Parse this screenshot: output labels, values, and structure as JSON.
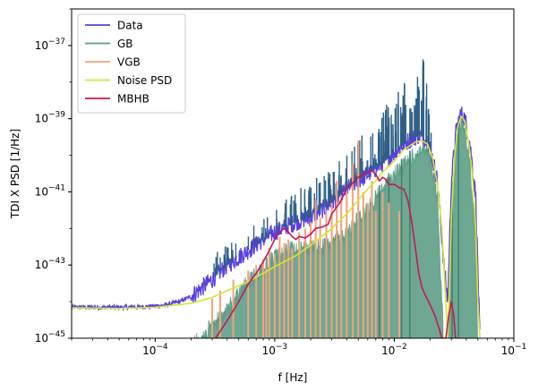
{
  "chart_data": {
    "type": "line",
    "title": "",
    "xlabel": "f [Hz]",
    "ylabel": "TDI X PSD [1/Hz]",
    "xscale": "log",
    "yscale": "log",
    "xlim": [
      2e-05,
      0.1
    ],
    "ylim": [
      1e-45,
      1e-36
    ],
    "x_major_ticks": [
      {
        "value": 0.0001,
        "base": "10",
        "exp": "−4"
      },
      {
        "value": 0.001,
        "base": "10",
        "exp": "−3"
      },
      {
        "value": 0.01,
        "base": "10",
        "exp": "−2"
      },
      {
        "value": 0.1,
        "base": "10",
        "exp": "−1"
      }
    ],
    "y_major_ticks": [
      {
        "value": 1e-45,
        "base": "10",
        "exp": "−45"
      },
      {
        "value": 1e-43,
        "base": "10",
        "exp": "−43"
      },
      {
        "value": 1e-41,
        "base": "10",
        "exp": "−41"
      },
      {
        "value": 1e-39,
        "base": "10",
        "exp": "−39"
      },
      {
        "value": 1e-37,
        "base": "10",
        "exp": "−37"
      }
    ],
    "legend_position": "top-left",
    "series": [
      {
        "name": "Data",
        "color": "#5a3ee0",
        "style": "noisy-band",
        "points": [
          [
            2e-05,
            7e-45
          ],
          [
            5e-05,
            7e-45
          ],
          [
            8e-05,
            7.2e-45
          ],
          [
            0.00012,
            8e-45
          ],
          [
            0.00016,
            1e-44
          ],
          [
            0.0002,
            1.4e-44
          ],
          [
            0.0003,
            4e-44
          ],
          [
            0.0004,
            1e-43
          ],
          [
            0.0006,
            2.5e-43
          ],
          [
            0.0008,
            5e-43
          ],
          [
            0.001,
            8e-43
          ],
          [
            0.0015,
            1.5e-42
          ],
          [
            0.002,
            2e-42
          ],
          [
            0.003,
            5e-42
          ],
          [
            0.004,
            1.2e-41
          ],
          [
            0.006,
            3e-41
          ],
          [
            0.008,
            6e-41
          ],
          [
            0.01,
            1.2e-40
          ],
          [
            0.013,
            2.5e-40
          ],
          [
            0.016,
            3.5e-40
          ],
          [
            0.018,
            3e-40
          ],
          [
            0.02,
            1.5e-40
          ],
          [
            0.023,
            2e-41
          ],
          [
            0.026,
            1e-43
          ],
          [
            0.028,
            1e-44
          ],
          [
            0.03,
            2e-41
          ],
          [
            0.033,
            5e-40
          ],
          [
            0.036,
            1.4e-39
          ],
          [
            0.039,
            1e-39
          ],
          [
            0.043,
            2e-40
          ],
          [
            0.048,
            8e-42
          ],
          [
            0.052,
            1e-45
          ]
        ],
        "upper_envelope": [
          [
            0.0003,
            2e-43
          ],
          [
            0.0006,
            1e-42
          ],
          [
            0.001,
            4e-42
          ],
          [
            0.002,
            2e-41
          ],
          [
            0.004,
            1e-40
          ],
          [
            0.006,
            6e-40
          ],
          [
            0.008,
            2e-39
          ],
          [
            0.01,
            5e-39
          ],
          [
            0.012,
            1e-38
          ],
          [
            0.014,
            1.5e-38
          ],
          [
            0.016,
            2.5e-38
          ],
          [
            0.018,
            6e-38
          ],
          [
            0.02,
            1e-39
          ],
          [
            0.022,
            3e-40
          ]
        ]
      },
      {
        "name": "GB",
        "color": "#5e9e86",
        "style": "filled-spikes",
        "points": [
          [
            0.00019,
            1e-45
          ],
          [
            0.00025,
            2e-45
          ],
          [
            0.0004,
            1e-44
          ],
          [
            0.0006,
            6e-44
          ],
          [
            0.0008,
            1.5e-43
          ],
          [
            0.001,
            3e-43
          ],
          [
            0.0015,
            5e-43
          ],
          [
            0.002,
            5e-43
          ],
          [
            0.003,
            6e-43
          ],
          [
            0.004,
            1.5e-42
          ],
          [
            0.006,
            6e-42
          ],
          [
            0.008,
            2e-41
          ],
          [
            0.01,
            5e-41
          ],
          [
            0.013,
            1.2e-40
          ],
          [
            0.016,
            2.2e-40
          ],
          [
            0.018,
            2.5e-40
          ],
          [
            0.02,
            1.2e-40
          ],
          [
            0.023,
            1e-41
          ],
          [
            0.026,
            1e-45
          ],
          [
            0.028,
            1e-45
          ],
          [
            0.03,
            1e-41
          ],
          [
            0.033,
            4e-40
          ],
          [
            0.036,
            1.2e-39
          ],
          [
            0.039,
            8e-40
          ],
          [
            0.043,
            1e-40
          ],
          [
            0.048,
            1e-42
          ],
          [
            0.05,
            1e-45
          ]
        ]
      },
      {
        "name": "VGB",
        "color": "#f4a27c",
        "style": "spikes",
        "spikes": [
          [
            0.0003,
            1.2e-44
          ],
          [
            0.00035,
            2e-44
          ],
          [
            0.00045,
            4e-44
          ],
          [
            0.0006,
            7e-44
          ],
          [
            0.0007,
            1e-43
          ],
          [
            0.0008,
            1.5e-43
          ],
          [
            0.00085,
            8e-44
          ],
          [
            0.0009,
            3e-43
          ],
          [
            0.001,
            2e-43
          ],
          [
            0.0011,
            6e-43
          ],
          [
            0.0012,
            4e-43
          ],
          [
            0.0013,
            5e-43
          ],
          [
            0.0014,
            3e-43
          ],
          [
            0.0016,
            8e-43
          ],
          [
            0.0018,
            1e-42
          ],
          [
            0.002,
            1.5e-42
          ],
          [
            0.0022,
            6e-42
          ],
          [
            0.0024,
            2e-42
          ],
          [
            0.0027,
            3e-42
          ],
          [
            0.003,
            5e-42
          ],
          [
            0.0033,
            2e-41
          ],
          [
            0.0036,
            8e-42
          ],
          [
            0.004,
            1.2e-41
          ],
          [
            0.0045,
            6e-41
          ],
          [
            0.005,
            2.5e-40
          ],
          [
            0.0055,
            1e-41
          ],
          [
            0.006,
            5e-42
          ],
          [
            0.0065,
            2e-41
          ],
          [
            0.007,
            3e-42
          ],
          [
            0.008,
            1e-41
          ],
          [
            0.009,
            5e-42
          ],
          [
            0.011,
            3e-42
          ]
        ]
      },
      {
        "name": "Noise PSD",
        "color": "#d6e634",
        "style": "line",
        "points": [
          [
            2e-05,
            6.8e-45
          ],
          [
            5e-05,
            6.5e-45
          ],
          [
            0.0001,
            7e-45
          ],
          [
            0.0002,
            9e-45
          ],
          [
            0.0003,
            1.3e-44
          ],
          [
            0.0004,
            2e-44
          ],
          [
            0.0006,
            3.5e-44
          ],
          [
            0.0008,
            6e-44
          ],
          [
            0.001,
            9e-44
          ],
          [
            0.0015,
            1.8e-43
          ],
          [
            0.002,
            3.5e-43
          ],
          [
            0.003,
            1e-42
          ],
          [
            0.004,
            2.5e-42
          ],
          [
            0.005,
            6e-42
          ],
          [
            0.006,
            1.2e-41
          ],
          [
            0.007,
            2e-41
          ],
          [
            0.008,
            3.5e-41
          ],
          [
            0.01,
            7e-41
          ],
          [
            0.012,
            1.4e-40
          ],
          [
            0.015,
            2.3e-40
          ],
          [
            0.017,
            2.5e-40
          ],
          [
            0.019,
            2e-40
          ],
          [
            0.021,
            8e-41
          ],
          [
            0.023,
            1.5e-41
          ],
          [
            0.025,
            1e-42
          ],
          [
            0.027,
            1e-44
          ],
          [
            0.028,
            1e-45
          ],
          [
            0.029,
            3e-44
          ],
          [
            0.03,
            2e-42
          ],
          [
            0.032,
            1e-40
          ],
          [
            0.034,
            6e-40
          ],
          [
            0.036,
            1.1e-39
          ],
          [
            0.037,
            1.1e-39
          ],
          [
            0.039,
            8e-40
          ],
          [
            0.042,
            2e-40
          ],
          [
            0.045,
            3e-41
          ],
          [
            0.048,
            1e-42
          ],
          [
            0.05,
            1e-44
          ],
          [
            0.052,
            1e-45
          ]
        ]
      },
      {
        "name": "MBHB",
        "color": "#c8165a",
        "style": "line",
        "points": [
          [
            0.00032,
            1e-45
          ],
          [
            0.0004,
            3e-45
          ],
          [
            0.0005,
            1e-44
          ],
          [
            0.0006,
            3e-44
          ],
          [
            0.0007,
            6e-44
          ],
          [
            0.0008,
            1.2e-43
          ],
          [
            0.0009,
            2.5e-43
          ],
          [
            0.001,
            5e-43
          ],
          [
            0.0011,
            8e-43
          ],
          [
            0.0012,
            1e-42
          ],
          [
            0.0013,
            8e-43
          ],
          [
            0.0014,
            6e-43
          ],
          [
            0.0015,
            5e-43
          ],
          [
            0.0016,
            6e-43
          ],
          [
            0.0018,
            5.5e-43
          ],
          [
            0.002,
            7e-43
          ],
          [
            0.0022,
            1e-42
          ],
          [
            0.0025,
            1.1e-42
          ],
          [
            0.0028,
            1.3e-42
          ],
          [
            0.003,
            2.5e-42
          ],
          [
            0.0035,
            5e-42
          ],
          [
            0.004,
            1.2e-41
          ],
          [
            0.005,
            2.5e-41
          ],
          [
            0.006,
            3.5e-41
          ],
          [
            0.0065,
            3.8e-41
          ],
          [
            0.007,
            3e-41
          ],
          [
            0.0075,
            2e-41
          ],
          [
            0.008,
            2.5e-41
          ],
          [
            0.0085,
            2.2e-41
          ],
          [
            0.009,
            1.6e-41
          ],
          [
            0.01,
            1.6e-41
          ],
          [
            0.011,
            1.3e-41
          ],
          [
            0.012,
            1.2e-41
          ],
          [
            0.013,
            6e-42
          ],
          [
            0.014,
            1.5e-42
          ],
          [
            0.015,
            3e-43
          ],
          [
            0.016,
            6e-44
          ],
          [
            0.017,
            2.5e-44
          ],
          [
            0.018,
            1.6e-44
          ],
          [
            0.02,
            8e-45
          ],
          [
            0.022,
            4e-45
          ],
          [
            0.024,
            1.6e-45
          ],
          [
            0.025,
            1e-45
          ],
          [
            0.027,
            1e-45
          ],
          [
            0.0285,
            4e-45
          ],
          [
            0.03,
            1e-44
          ],
          [
            0.0315,
            4e-45
          ],
          [
            0.0325,
            1e-45
          ]
        ]
      }
    ]
  }
}
